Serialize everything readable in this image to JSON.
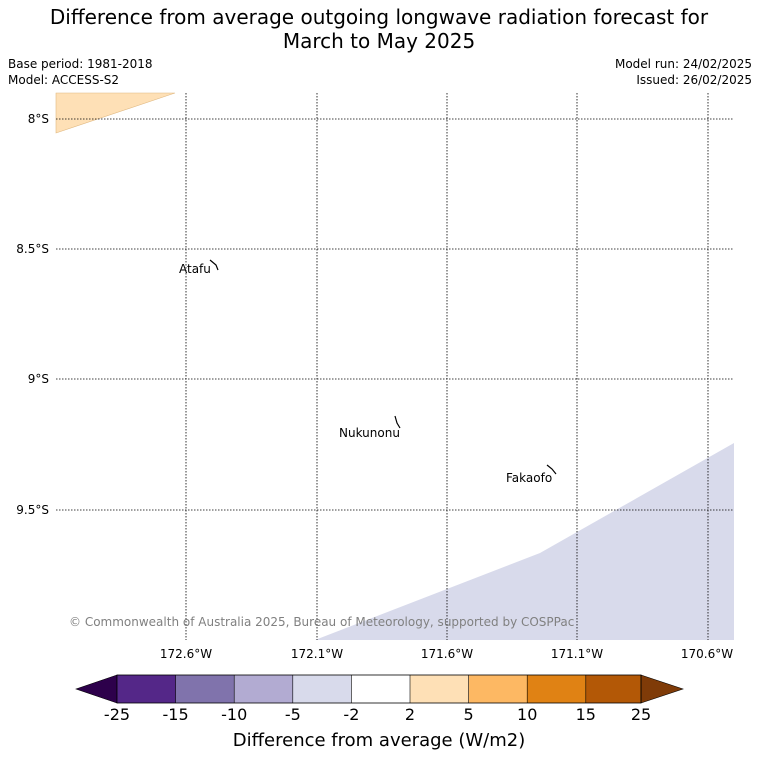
{
  "title_line1": "Difference from average outgoing longwave radiation forecast for",
  "title_line2": "March to May 2025",
  "meta": {
    "base_period": "Base period: 1981-2018",
    "model": "Model: ACCESS-S2",
    "model_run": "Model run: 24/02/2025",
    "issued": "Issued: 26/02/2025"
  },
  "map": {
    "lat_labels": [
      "8°S",
      "8.5°S",
      "9°S",
      "9.5°S"
    ],
    "lon_labels": [
      "172.6°W",
      "172.1°W",
      "171.6°W",
      "171.1°W",
      "170.6°W"
    ],
    "places": [
      "Atafu",
      "Nukunonu",
      "Fakaofo"
    ],
    "copyright": "© Commonwealth of Australia 2025, Bureau of Meteorology, supported by COSPPac",
    "colors": {
      "positive_2_5": "#fee0b6",
      "negative_2_5": "#d8daeb"
    }
  },
  "colorbar": {
    "ticks": [
      "-25",
      "-15",
      "-10",
      "-5",
      "-2",
      "2",
      "5",
      "10",
      "15",
      "25"
    ],
    "colors": [
      "#2d004b",
      "#542788",
      "#8073ac",
      "#b2abd2",
      "#d8daeb",
      "#ffffff",
      "#fee0b6",
      "#fdb863",
      "#e08214",
      "#b35806",
      "#7f3b08"
    ],
    "label": "Difference from average (W/m2)"
  }
}
